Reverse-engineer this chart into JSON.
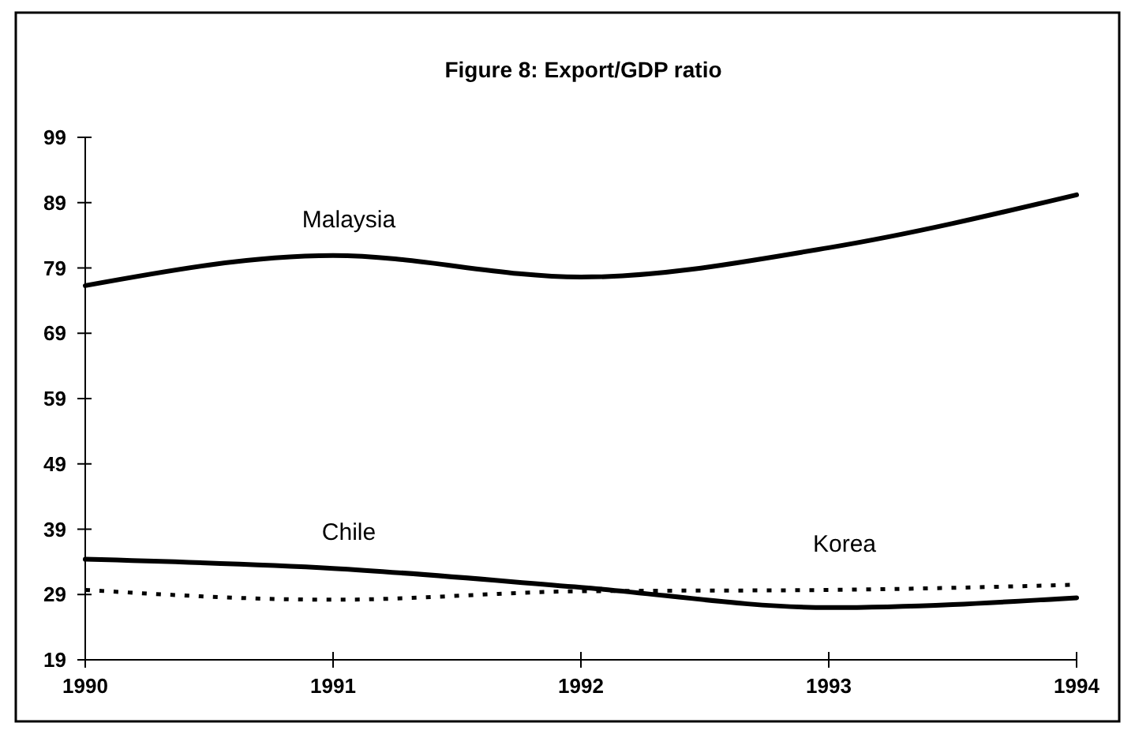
{
  "chart_data": {
    "type": "line",
    "title": "Figure 8: Export/GDP ratio",
    "x": [
      1990,
      1991,
      1992,
      1993,
      1994
    ],
    "xlim": [
      1990,
      1994
    ],
    "xticks": [
      1990,
      1991,
      1992,
      1993,
      1994
    ],
    "ylim": [
      19,
      99
    ],
    "yticks": [
      19,
      29,
      39,
      49,
      59,
      69,
      79,
      89,
      99
    ],
    "grid": false,
    "series": [
      {
        "name": "Malaysia",
        "color": "#000000",
        "line_style": "solid",
        "values": [
          76.3,
          80.9,
          77.6,
          82.1,
          90.2
        ]
      },
      {
        "name": "Chile",
        "color": "#000000",
        "line_style": "solid",
        "values": [
          34.4,
          33.0,
          30.1,
          27.0,
          28.5
        ]
      },
      {
        "name": "Korea",
        "color": "#000000",
        "line_style": "dotted",
        "values": [
          29.7,
          28.2,
          29.5,
          29.7,
          30.5
        ]
      }
    ]
  }
}
